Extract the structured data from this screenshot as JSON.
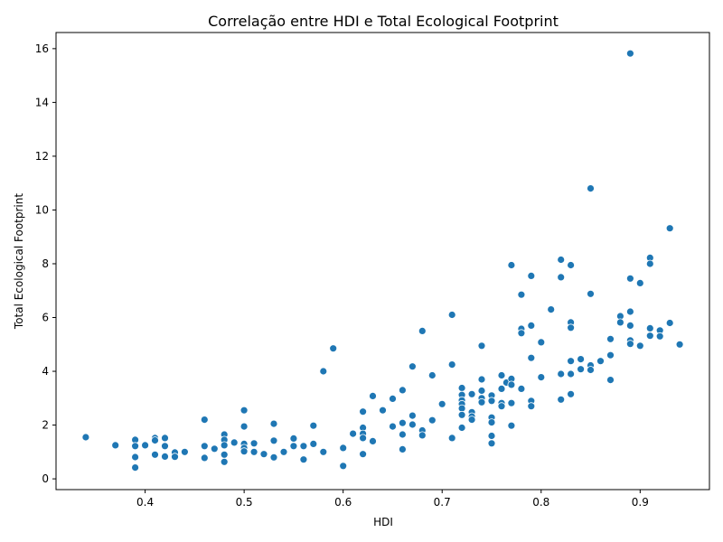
{
  "chart_data": {
    "type": "scatter",
    "title": "Correlação entre HDI e Total Ecological Footprint",
    "xlabel": "HDI",
    "ylabel": "Total Ecological Footprint",
    "xlim": [
      0.31,
      0.97
    ],
    "ylim": [
      -0.4,
      16.6
    ],
    "xticks": [
      {
        "value": 0.4,
        "label": "0.4"
      },
      {
        "value": 0.5,
        "label": "0.5"
      },
      {
        "value": 0.6,
        "label": "0.6"
      },
      {
        "value": 0.7,
        "label": "0.7"
      },
      {
        "value": 0.8,
        "label": "0.8"
      },
      {
        "value": 0.9,
        "label": "0.9"
      }
    ],
    "yticks": [
      {
        "value": 0,
        "label": "0"
      },
      {
        "value": 2,
        "label": "2"
      },
      {
        "value": 4,
        "label": "4"
      },
      {
        "value": 6,
        "label": "6"
      },
      {
        "value": 8,
        "label": "8"
      },
      {
        "value": 10,
        "label": "10"
      },
      {
        "value": 12,
        "label": "12"
      },
      {
        "value": 14,
        "label": "14"
      },
      {
        "value": 16,
        "label": "16"
      }
    ],
    "grid": false,
    "color": "#1f77b4",
    "points": [
      [
        0.34,
        1.55
      ],
      [
        0.37,
        1.25
      ],
      [
        0.39,
        1.45
      ],
      [
        0.39,
        1.22
      ],
      [
        0.39,
        0.81
      ],
      [
        0.39,
        0.42
      ],
      [
        0.4,
        1.25
      ],
      [
        0.41,
        1.52
      ],
      [
        0.41,
        1.43
      ],
      [
        0.41,
        0.9
      ],
      [
        0.42,
        1.52
      ],
      [
        0.42,
        1.22
      ],
      [
        0.42,
        0.83
      ],
      [
        0.43,
        0.98
      ],
      [
        0.43,
        0.82
      ],
      [
        0.44,
        1.0
      ],
      [
        0.46,
        2.2
      ],
      [
        0.46,
        1.22
      ],
      [
        0.46,
        0.78
      ],
      [
        0.47,
        1.12
      ],
      [
        0.48,
        1.65
      ],
      [
        0.48,
        1.45
      ],
      [
        0.48,
        1.25
      ],
      [
        0.48,
        0.9
      ],
      [
        0.48,
        0.63
      ],
      [
        0.49,
        1.35
      ],
      [
        0.5,
        2.55
      ],
      [
        0.5,
        1.95
      ],
      [
        0.5,
        1.3
      ],
      [
        0.5,
        1.15
      ],
      [
        0.5,
        1.02
      ],
      [
        0.51,
        1.32
      ],
      [
        0.51,
        1.0
      ],
      [
        0.52,
        0.92
      ],
      [
        0.53,
        2.05
      ],
      [
        0.53,
        1.42
      ],
      [
        0.53,
        0.8
      ],
      [
        0.54,
        1.0
      ],
      [
        0.55,
        1.5
      ],
      [
        0.55,
        1.22
      ],
      [
        0.56,
        1.22
      ],
      [
        0.56,
        0.72
      ],
      [
        0.57,
        1.98
      ],
      [
        0.57,
        1.3
      ],
      [
        0.58,
        4.0
      ],
      [
        0.58,
        1.0
      ],
      [
        0.59,
        4.85
      ],
      [
        0.6,
        1.15
      ],
      [
        0.6,
        0.48
      ],
      [
        0.61,
        1.68
      ],
      [
        0.62,
        2.5
      ],
      [
        0.62,
        1.9
      ],
      [
        0.62,
        1.68
      ],
      [
        0.62,
        1.52
      ],
      [
        0.62,
        0.92
      ],
      [
        0.63,
        3.08
      ],
      [
        0.63,
        1.4
      ],
      [
        0.64,
        2.55
      ],
      [
        0.65,
        2.98
      ],
      [
        0.65,
        1.95
      ],
      [
        0.66,
        3.3
      ],
      [
        0.66,
        2.08
      ],
      [
        0.66,
        1.65
      ],
      [
        0.66,
        1.1
      ],
      [
        0.67,
        4.18
      ],
      [
        0.67,
        2.35
      ],
      [
        0.67,
        2.02
      ],
      [
        0.68,
        5.5
      ],
      [
        0.68,
        1.8
      ],
      [
        0.68,
        1.62
      ],
      [
        0.69,
        3.85
      ],
      [
        0.69,
        2.18
      ],
      [
        0.7,
        2.78
      ],
      [
        0.71,
        6.1
      ],
      [
        0.71,
        4.25
      ],
      [
        0.71,
        1.52
      ],
      [
        0.72,
        3.38
      ],
      [
        0.72,
        3.12
      ],
      [
        0.72,
        2.92
      ],
      [
        0.72,
        2.78
      ],
      [
        0.72,
        2.62
      ],
      [
        0.72,
        2.38
      ],
      [
        0.72,
        1.9
      ],
      [
        0.73,
        3.15
      ],
      [
        0.73,
        2.48
      ],
      [
        0.73,
        2.32
      ],
      [
        0.73,
        2.2
      ],
      [
        0.74,
        4.95
      ],
      [
        0.74,
        3.7
      ],
      [
        0.74,
        3.28
      ],
      [
        0.74,
        3.0
      ],
      [
        0.74,
        2.85
      ],
      [
        0.75,
        3.1
      ],
      [
        0.75,
        2.9
      ],
      [
        0.75,
        2.28
      ],
      [
        0.75,
        2.1
      ],
      [
        0.75,
        1.6
      ],
      [
        0.75,
        1.32
      ],
      [
        0.76,
        3.85
      ],
      [
        0.76,
        3.35
      ],
      [
        0.76,
        2.82
      ],
      [
        0.76,
        2.7
      ],
      [
        0.765,
        3.58
      ],
      [
        0.77,
        7.95
      ],
      [
        0.77,
        3.72
      ],
      [
        0.77,
        3.5
      ],
      [
        0.77,
        2.82
      ],
      [
        0.77,
        1.98
      ],
      [
        0.78,
        6.85
      ],
      [
        0.78,
        5.58
      ],
      [
        0.78,
        5.42
      ],
      [
        0.78,
        3.35
      ],
      [
        0.79,
        7.55
      ],
      [
        0.79,
        5.7
      ],
      [
        0.79,
        4.5
      ],
      [
        0.79,
        2.9
      ],
      [
        0.79,
        2.7
      ],
      [
        0.8,
        5.08
      ],
      [
        0.8,
        3.78
      ],
      [
        0.81,
        6.3
      ],
      [
        0.82,
        8.15
      ],
      [
        0.82,
        7.5
      ],
      [
        0.82,
        3.9
      ],
      [
        0.82,
        2.95
      ],
      [
        0.83,
        7.95
      ],
      [
        0.83,
        5.82
      ],
      [
        0.83,
        5.62
      ],
      [
        0.83,
        4.38
      ],
      [
        0.83,
        3.9
      ],
      [
        0.83,
        3.15
      ],
      [
        0.84,
        4.45
      ],
      [
        0.84,
        4.08
      ],
      [
        0.85,
        10.8
      ],
      [
        0.85,
        6.88
      ],
      [
        0.85,
        4.22
      ],
      [
        0.85,
        4.05
      ],
      [
        0.86,
        4.38
      ],
      [
        0.87,
        5.2
      ],
      [
        0.87,
        4.6
      ],
      [
        0.87,
        3.68
      ],
      [
        0.88,
        6.05
      ],
      [
        0.88,
        5.82
      ],
      [
        0.89,
        15.82
      ],
      [
        0.89,
        7.45
      ],
      [
        0.89,
        6.22
      ],
      [
        0.89,
        5.7
      ],
      [
        0.89,
        5.15
      ],
      [
        0.89,
        5.02
      ],
      [
        0.9,
        7.28
      ],
      [
        0.9,
        4.95
      ],
      [
        0.91,
        8.22
      ],
      [
        0.91,
        8.0
      ],
      [
        0.91,
        5.6
      ],
      [
        0.91,
        5.32
      ],
      [
        0.92,
        5.52
      ],
      [
        0.92,
        5.3
      ],
      [
        0.93,
        9.32
      ],
      [
        0.93,
        5.8
      ],
      [
        0.94,
        5.0
      ]
    ]
  }
}
